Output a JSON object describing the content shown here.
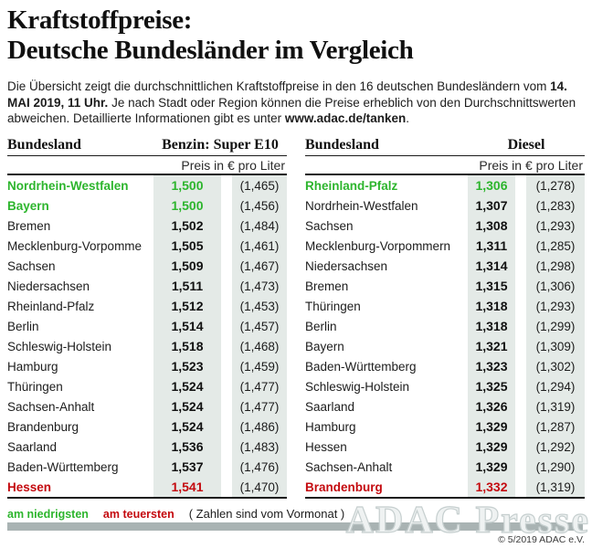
{
  "title": {
    "line1": "Kraftstoffpreise:",
    "line2": "Deutsche Bundesländer im Vergleich"
  },
  "intro": {
    "part1": "Die Übersicht zeigt die durchschnittlichen Kraftstoffpreise in den 16 deutschen Bundesländern vom ",
    "bold1": "14. MAI 2019, 11 Uhr.",
    "part2": " Je nach Stadt oder Region können die Preise erheblich von den Durchschnittswerten abweichen. Detaillierte Informationen gibt es unter ",
    "bold2": "www.adac.de/tanken",
    "part3": "."
  },
  "tables": [
    {
      "col_header": "Bundesland",
      "fuel_header": "Benzin: Super E10",
      "unit_header": "Preis in € pro Liter",
      "rows": [
        {
          "state": "Nordrhein-Westfalen",
          "price": "1,500",
          "prev": "(1,465)",
          "highlight": "green"
        },
        {
          "state": "Bayern",
          "price": "1,500",
          "prev": "(1,456)",
          "highlight": "green"
        },
        {
          "state": "Bremen",
          "price": "1,502",
          "prev": "(1,484)"
        },
        {
          "state": "Mecklenburg-Vorpommern",
          "price": "1,505",
          "prev": "(1,461)"
        },
        {
          "state": "Sachsen",
          "price": "1,509",
          "prev": "(1,467)"
        },
        {
          "state": "Niedersachsen",
          "price": "1,511",
          "prev": "(1,473)"
        },
        {
          "state": "Rheinland-Pfalz",
          "price": "1,512",
          "prev": "(1,453)"
        },
        {
          "state": "Berlin",
          "price": "1,514",
          "prev": "(1,457)"
        },
        {
          "state": "Schleswig-Holstein",
          "price": "1,518",
          "prev": "(1,468)"
        },
        {
          "state": "Hamburg",
          "price": "1,523",
          "prev": "(1,459)"
        },
        {
          "state": "Thüringen",
          "price": "1,524",
          "prev": "(1,477)"
        },
        {
          "state": "Sachsen-Anhalt",
          "price": "1,524",
          "prev": "(1,477)"
        },
        {
          "state": "Brandenburg",
          "price": "1,524",
          "prev": "(1,486)"
        },
        {
          "state": "Saarland",
          "price": "1,536",
          "prev": "(1,483)"
        },
        {
          "state": "Baden-Württemberg",
          "price": "1,537",
          "prev": "(1,476)"
        },
        {
          "state": "Hessen",
          "price": "1,541",
          "prev": "(1,470)",
          "highlight": "red"
        }
      ]
    },
    {
      "col_header": "Bundesland",
      "fuel_header": "Diesel",
      "unit_header": "Preis in € pro Liter",
      "rows": [
        {
          "state": "Rheinland-Pfalz",
          "price": "1,306",
          "prev": "(1,278)",
          "highlight": "green"
        },
        {
          "state": "Nordrhein-Westfalen",
          "price": "1,307",
          "prev": "(1,283)"
        },
        {
          "state": "Sachsen",
          "price": "1,308",
          "prev": "(1,293)"
        },
        {
          "state": "Mecklenburg-Vorpommern",
          "price": "1,311",
          "prev": "(1,285)"
        },
        {
          "state": "Niedersachsen",
          "price": "1,314",
          "prev": "(1,298)"
        },
        {
          "state": "Bremen",
          "price": "1,315",
          "prev": "(1,306)"
        },
        {
          "state": "Thüringen",
          "price": "1,318",
          "prev": "(1,293)"
        },
        {
          "state": "Berlin",
          "price": "1,318",
          "prev": "(1,299)"
        },
        {
          "state": "Bayern",
          "price": "1,321",
          "prev": "(1,309)"
        },
        {
          "state": "Baden-Württemberg",
          "price": "1,323",
          "prev": "(1,302)"
        },
        {
          "state": "Schleswig-Holstein",
          "price": "1,325",
          "prev": "(1,294)"
        },
        {
          "state": "Saarland",
          "price": "1,326",
          "prev": "(1,319)"
        },
        {
          "state": "Hamburg",
          "price": "1,329",
          "prev": "(1,287)"
        },
        {
          "state": "Hessen",
          "price": "1,329",
          "prev": "(1,292)"
        },
        {
          "state": "Sachsen-Anhalt",
          "price": "1,329",
          "prev": "(1,290)"
        },
        {
          "state": "Brandenburg",
          "price": "1,332",
          "prev": "(1,319)",
          "highlight": "red"
        }
      ]
    }
  ],
  "chart_data": [
    {
      "type": "table",
      "title": "Benzin: Super E10",
      "unit": "Preis in € pro Liter",
      "columns": [
        "Bundesland",
        "Preis",
        "Vormonat"
      ],
      "rows": [
        [
          "Nordrhein-Westfalen",
          1.5,
          1.465
        ],
        [
          "Bayern",
          1.5,
          1.456
        ],
        [
          "Bremen",
          1.502,
          1.484
        ],
        [
          "Mecklenburg-Vorpommern",
          1.505,
          1.461
        ],
        [
          "Sachsen",
          1.509,
          1.467
        ],
        [
          "Niedersachsen",
          1.511,
          1.473
        ],
        [
          "Rheinland-Pfalz",
          1.512,
          1.453
        ],
        [
          "Berlin",
          1.514,
          1.457
        ],
        [
          "Schleswig-Holstein",
          1.518,
          1.468
        ],
        [
          "Hamburg",
          1.523,
          1.459
        ],
        [
          "Thüringen",
          1.524,
          1.477
        ],
        [
          "Sachsen-Anhalt",
          1.524,
          1.477
        ],
        [
          "Brandenburg",
          1.524,
          1.486
        ],
        [
          "Saarland",
          1.536,
          1.483
        ],
        [
          "Baden-Württemberg",
          1.537,
          1.476
        ],
        [
          "Hessen",
          1.541,
          1.47
        ]
      ]
    },
    {
      "type": "table",
      "title": "Diesel",
      "unit": "Preis in € pro Liter",
      "columns": [
        "Bundesland",
        "Preis",
        "Vormonat"
      ],
      "rows": [
        [
          "Rheinland-Pfalz",
          1.306,
          1.278
        ],
        [
          "Nordrhein-Westfalen",
          1.307,
          1.283
        ],
        [
          "Sachsen",
          1.308,
          1.293
        ],
        [
          "Mecklenburg-Vorpommern",
          1.311,
          1.285
        ],
        [
          "Niedersachsen",
          1.314,
          1.298
        ],
        [
          "Bremen",
          1.315,
          1.306
        ],
        [
          "Thüringen",
          1.318,
          1.293
        ],
        [
          "Berlin",
          1.318,
          1.299
        ],
        [
          "Bayern",
          1.321,
          1.309
        ],
        [
          "Baden-Württemberg",
          1.323,
          1.302
        ],
        [
          "Schleswig-Holstein",
          1.325,
          1.294
        ],
        [
          "Saarland",
          1.326,
          1.319
        ],
        [
          "Hamburg",
          1.329,
          1.287
        ],
        [
          "Hessen",
          1.329,
          1.292
        ],
        [
          "Sachsen-Anhalt",
          1.329,
          1.29
        ],
        [
          "Brandenburg",
          1.332,
          1.319
        ]
      ]
    }
  ],
  "legend": {
    "lowest": "am niedrigsten",
    "highest": "am teuersten",
    "note": "( Zahlen sind vom Vormonat )"
  },
  "watermark": "ADAC Presse",
  "copyright": "© 5/2019 ADAC e.V.",
  "colors": {
    "green": "#2db52d",
    "red": "#c40a0f",
    "column_bg": "#e4eae7",
    "bar": "#a9b3b3"
  }
}
